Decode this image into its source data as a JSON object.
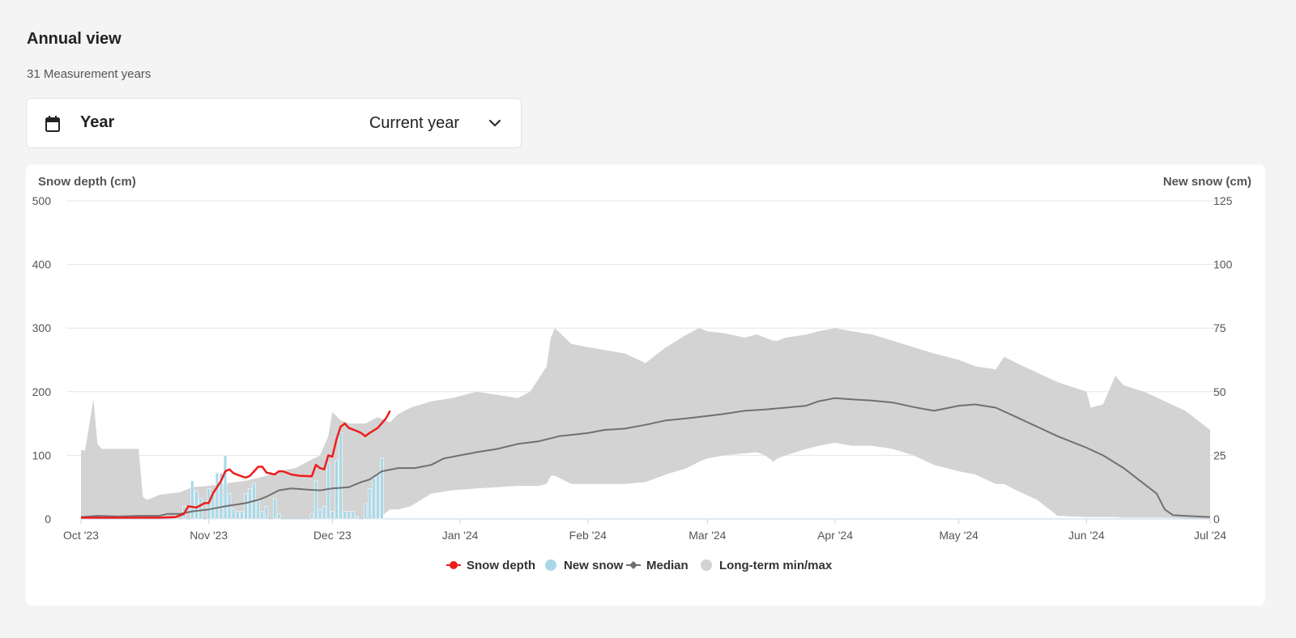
{
  "header": {
    "title": "Annual view",
    "subtitle": "31 Measurement years"
  },
  "year_selector": {
    "label": "Year",
    "value": "Current year",
    "icon": "calendar-icon",
    "dropdown_icon": "chevron-down-icon"
  },
  "colors": {
    "snow_depth": "#ee1c1c",
    "new_snow": "#a8d8e8",
    "median": "#707070",
    "minmax": "#d3d3d3"
  },
  "chart_data": {
    "type": "line",
    "ylabel": "Snow depth (cm)",
    "y2label": "New snow (cm)",
    "ylim": [
      0,
      500
    ],
    "y2lim": [
      0,
      125
    ],
    "yticks": [
      0,
      100,
      200,
      300,
      400,
      500
    ],
    "y2ticks": [
      0,
      25,
      50,
      75,
      100,
      125
    ],
    "xlim": [
      "2023-10-01",
      "2024-07-01"
    ],
    "xticks": [
      {
        "date": "2023-10-01",
        "label": "Oct '23"
      },
      {
        "date": "2023-11-01",
        "label": "Nov '23"
      },
      {
        "date": "2023-12-01",
        "label": "Dec '23"
      },
      {
        "date": "2024-01-01",
        "label": "Jan '24"
      },
      {
        "date": "2024-02-01",
        "label": "Feb '24"
      },
      {
        "date": "2024-03-01",
        "label": "Mar '24"
      },
      {
        "date": "2024-04-01",
        "label": "Apr '24"
      },
      {
        "date": "2024-05-01",
        "label": "May '24"
      },
      {
        "date": "2024-06-01",
        "label": "Jun '24"
      },
      {
        "date": "2024-07-01",
        "label": "Jul '24"
      }
    ],
    "grid": true,
    "legend_position": "bottom-center",
    "legend": [
      {
        "name": "Snow depth",
        "marker": "line-dot"
      },
      {
        "name": "New snow",
        "marker": "dot"
      },
      {
        "name": "Median",
        "marker": "line-diamond"
      },
      {
        "name": "Long-term min/max",
        "marker": "dot"
      }
    ],
    "series": [
      {
        "name": "Snow depth",
        "type": "line",
        "axis": "left",
        "points": [
          [
            "2023-10-01",
            2
          ],
          [
            "2023-10-10",
            2
          ],
          [
            "2023-10-20",
            2
          ],
          [
            "2023-10-24",
            3
          ],
          [
            "2023-10-26",
            8
          ],
          [
            "2023-10-27",
            20
          ],
          [
            "2023-10-29",
            18
          ],
          [
            "2023-10-31",
            25
          ],
          [
            "2023-11-01",
            25
          ],
          [
            "2023-11-02",
            40
          ],
          [
            "2023-11-04",
            60
          ],
          [
            "2023-11-05",
            75
          ],
          [
            "2023-11-06",
            78
          ],
          [
            "2023-11-07",
            72
          ],
          [
            "2023-11-09",
            67
          ],
          [
            "2023-11-10",
            65
          ],
          [
            "2023-11-11",
            68
          ],
          [
            "2023-11-12",
            75
          ],
          [
            "2023-11-13",
            82
          ],
          [
            "2023-11-14",
            82
          ],
          [
            "2023-11-15",
            73
          ],
          [
            "2023-11-17",
            70
          ],
          [
            "2023-11-18",
            75
          ],
          [
            "2023-11-19",
            75
          ],
          [
            "2023-11-21",
            70
          ],
          [
            "2023-11-23",
            68
          ],
          [
            "2023-11-26",
            67
          ],
          [
            "2023-11-27",
            85
          ],
          [
            "2023-11-28",
            80
          ],
          [
            "2023-11-29",
            78
          ],
          [
            "2023-11-30",
            100
          ],
          [
            "2023-12-01",
            98
          ],
          [
            "2023-12-02",
            125
          ],
          [
            "2023-12-03",
            145
          ],
          [
            "2023-12-04",
            150
          ],
          [
            "2023-12-05",
            143
          ],
          [
            "2023-12-07",
            138
          ],
          [
            "2023-12-08",
            135
          ],
          [
            "2023-12-09",
            130
          ],
          [
            "2023-12-10",
            135
          ],
          [
            "2023-12-12",
            143
          ],
          [
            "2023-12-14",
            158
          ],
          [
            "2023-12-15",
            170
          ]
        ]
      },
      {
        "name": "New snow",
        "type": "column",
        "axis": "right",
        "points": [
          [
            "2023-10-24",
            1
          ],
          [
            "2023-10-26",
            5
          ],
          [
            "2023-10-28",
            15
          ],
          [
            "2023-10-29",
            11
          ],
          [
            "2023-10-30",
            8
          ],
          [
            "2023-11-01",
            12
          ],
          [
            "2023-11-02",
            10
          ],
          [
            "2023-11-03",
            18
          ],
          [
            "2023-11-04",
            18
          ],
          [
            "2023-11-05",
            25
          ],
          [
            "2023-11-06",
            10
          ],
          [
            "2023-11-07",
            4
          ],
          [
            "2023-11-08",
            3
          ],
          [
            "2023-11-09",
            3
          ],
          [
            "2023-11-10",
            10
          ],
          [
            "2023-11-11",
            12
          ],
          [
            "2023-11-12",
            14
          ],
          [
            "2023-11-13",
            7
          ],
          [
            "2023-11-14",
            3
          ],
          [
            "2023-11-15",
            5
          ],
          [
            "2023-11-17",
            8
          ],
          [
            "2023-11-18",
            2
          ],
          [
            "2023-11-26",
            2
          ],
          [
            "2023-11-27",
            15
          ],
          [
            "2023-11-28",
            4
          ],
          [
            "2023-11-29",
            5
          ],
          [
            "2023-11-30",
            22
          ],
          [
            "2023-12-01",
            3
          ],
          [
            "2023-12-02",
            23
          ],
          [
            "2023-12-03",
            34
          ],
          [
            "2023-12-04",
            3
          ],
          [
            "2023-12-05",
            3
          ],
          [
            "2023-12-06",
            3
          ],
          [
            "2023-12-07",
            1
          ],
          [
            "2023-12-09",
            6
          ],
          [
            "2023-12-10",
            12
          ],
          [
            "2023-12-11",
            16
          ],
          [
            "2023-12-12",
            18
          ],
          [
            "2023-12-13",
            24
          ]
        ]
      },
      {
        "name": "Median",
        "type": "line",
        "axis": "left",
        "points": [
          [
            "2023-10-01",
            3
          ],
          [
            "2023-10-05",
            5
          ],
          [
            "2023-10-10",
            4
          ],
          [
            "2023-10-15",
            5
          ],
          [
            "2023-10-20",
            5
          ],
          [
            "2023-10-22",
            8
          ],
          [
            "2023-10-25",
            8
          ],
          [
            "2023-10-28",
            12
          ],
          [
            "2023-11-01",
            15
          ],
          [
            "2023-11-05",
            20
          ],
          [
            "2023-11-10",
            25
          ],
          [
            "2023-11-13",
            30
          ],
          [
            "2023-11-15",
            35
          ],
          [
            "2023-11-18",
            45
          ],
          [
            "2023-11-21",
            48
          ],
          [
            "2023-11-25",
            46
          ],
          [
            "2023-11-28",
            45
          ],
          [
            "2023-12-01",
            48
          ],
          [
            "2023-12-05",
            50
          ],
          [
            "2023-12-08",
            58
          ],
          [
            "2023-12-10",
            62
          ],
          [
            "2023-12-13",
            75
          ],
          [
            "2023-12-17",
            80
          ],
          [
            "2023-12-21",
            80
          ],
          [
            "2023-12-25",
            85
          ],
          [
            "2023-12-28",
            95
          ],
          [
            "2024-01-01",
            100
          ],
          [
            "2024-01-05",
            105
          ],
          [
            "2024-01-10",
            110
          ],
          [
            "2024-01-15",
            118
          ],
          [
            "2024-01-20",
            122
          ],
          [
            "2024-01-25",
            130
          ],
          [
            "2024-02-01",
            135
          ],
          [
            "2024-02-05",
            140
          ],
          [
            "2024-02-10",
            142
          ],
          [
            "2024-02-15",
            148
          ],
          [
            "2024-02-20",
            155
          ],
          [
            "2024-02-25",
            158
          ],
          [
            "2024-03-01",
            162
          ],
          [
            "2024-03-05",
            165
          ],
          [
            "2024-03-10",
            170
          ],
          [
            "2024-03-15",
            172
          ],
          [
            "2024-03-20",
            175
          ],
          [
            "2024-03-25",
            178
          ],
          [
            "2024-03-28",
            185
          ],
          [
            "2024-04-01",
            190
          ],
          [
            "2024-04-05",
            188
          ],
          [
            "2024-04-10",
            186
          ],
          [
            "2024-04-15",
            183
          ],
          [
            "2024-04-20",
            176
          ],
          [
            "2024-04-25",
            170
          ],
          [
            "2024-05-01",
            178
          ],
          [
            "2024-05-05",
            180
          ],
          [
            "2024-05-10",
            175
          ],
          [
            "2024-05-15",
            160
          ],
          [
            "2024-05-20",
            145
          ],
          [
            "2024-05-25",
            130
          ],
          [
            "2024-06-01",
            112
          ],
          [
            "2024-06-05",
            100
          ],
          [
            "2024-06-10",
            80
          ],
          [
            "2024-06-15",
            55
          ],
          [
            "2024-06-18",
            40
          ],
          [
            "2024-06-20",
            15
          ],
          [
            "2024-06-22",
            6
          ],
          [
            "2024-06-25",
            5
          ],
          [
            "2024-07-01",
            3
          ]
        ]
      },
      {
        "name": "Long-term min/max",
        "type": "arearange",
        "axis": "left",
        "points": [
          [
            "2023-10-01",
            0,
            108
          ],
          [
            "2023-10-02",
            0,
            108
          ],
          [
            "2023-10-04",
            0,
            188
          ],
          [
            "2023-10-05",
            0,
            118
          ],
          [
            "2023-10-06",
            0,
            110
          ],
          [
            "2023-10-15",
            0,
            110
          ],
          [
            "2023-10-16",
            0,
            35
          ],
          [
            "2023-10-17",
            0,
            30
          ],
          [
            "2023-10-19",
            0,
            35
          ],
          [
            "2023-10-20",
            0,
            38
          ],
          [
            "2023-10-25",
            0,
            42
          ],
          [
            "2023-10-28",
            0,
            50
          ],
          [
            "2023-11-01",
            0,
            52
          ],
          [
            "2023-11-05",
            0,
            56
          ],
          [
            "2023-11-10",
            0,
            60
          ],
          [
            "2023-11-15",
            0,
            68
          ],
          [
            "2023-11-18",
            0,
            75
          ],
          [
            "2023-11-22",
            0,
            80
          ],
          [
            "2023-11-25",
            0,
            90
          ],
          [
            "2023-11-28",
            0,
            100
          ],
          [
            "2023-11-30",
            0,
            130
          ],
          [
            "2023-12-01",
            0,
            168
          ],
          [
            "2023-12-03",
            0,
            155
          ],
          [
            "2023-12-05",
            0,
            150
          ],
          [
            "2023-12-09",
            0,
            150
          ],
          [
            "2023-12-12",
            0,
            160
          ],
          [
            "2023-12-15",
            15,
            152
          ],
          [
            "2023-12-17",
            15,
            165
          ],
          [
            "2023-12-20",
            20,
            175
          ],
          [
            "2023-12-25",
            40,
            185
          ],
          [
            "2023-12-30",
            45,
            190
          ],
          [
            "2024-01-05",
            48,
            200
          ],
          [
            "2024-01-10",
            50,
            195
          ],
          [
            "2024-01-15",
            52,
            190
          ],
          [
            "2024-01-18",
            52,
            200
          ],
          [
            "2024-01-20",
            52,
            220
          ],
          [
            "2024-01-22",
            55,
            240
          ],
          [
            "2024-01-23",
            68,
            285
          ],
          [
            "2024-01-24",
            68,
            300
          ],
          [
            "2024-01-28",
            55,
            275
          ],
          [
            "2024-02-01",
            55,
            270
          ],
          [
            "2024-02-10",
            55,
            260
          ],
          [
            "2024-02-15",
            58,
            245
          ],
          [
            "2024-02-20",
            70,
            270
          ],
          [
            "2024-02-25",
            80,
            290
          ],
          [
            "2024-02-28",
            90,
            300
          ],
          [
            "2024-03-01",
            95,
            295
          ],
          [
            "2024-03-05",
            100,
            292
          ],
          [
            "2024-03-10",
            103,
            285
          ],
          [
            "2024-03-13",
            105,
            290
          ],
          [
            "2024-03-15",
            100,
            285
          ],
          [
            "2024-03-17",
            90,
            280
          ],
          [
            "2024-03-18",
            95,
            280
          ],
          [
            "2024-03-20",
            100,
            285
          ],
          [
            "2024-03-25",
            110,
            290
          ],
          [
            "2024-03-28",
            115,
            295
          ],
          [
            "2024-04-01",
            120,
            300
          ],
          [
            "2024-04-05",
            115,
            295
          ],
          [
            "2024-04-10",
            115,
            290
          ],
          [
            "2024-04-15",
            110,
            280
          ],
          [
            "2024-04-20",
            100,
            270
          ],
          [
            "2024-04-25",
            85,
            260
          ],
          [
            "2024-05-01",
            75,
            250
          ],
          [
            "2024-05-05",
            70,
            240
          ],
          [
            "2024-05-10",
            55,
            235
          ],
          [
            "2024-05-12",
            55,
            255
          ],
          [
            "2024-05-15",
            45,
            245
          ],
          [
            "2024-05-20",
            30,
            230
          ],
          [
            "2024-05-25",
            5,
            215
          ],
          [
            "2024-06-01",
            3,
            200
          ],
          [
            "2024-06-02",
            3,
            175
          ],
          [
            "2024-06-05",
            3,
            180
          ],
          [
            "2024-06-08",
            3,
            225
          ],
          [
            "2024-06-10",
            2,
            210
          ],
          [
            "2024-06-15",
            2,
            200
          ],
          [
            "2024-06-20",
            2,
            185
          ],
          [
            "2024-06-25",
            1,
            170
          ],
          [
            "2024-07-01",
            0,
            140
          ]
        ]
      }
    ]
  }
}
